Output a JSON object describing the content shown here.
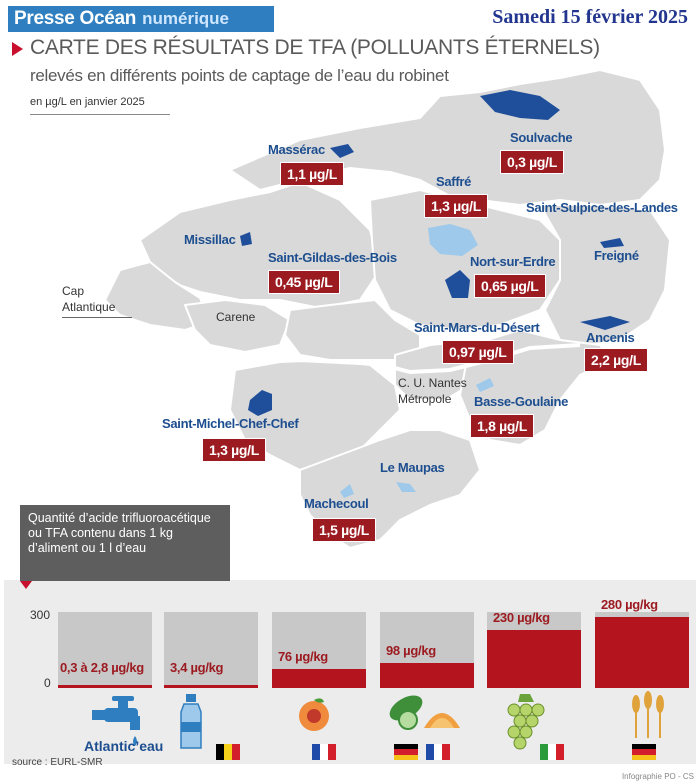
{
  "header": {
    "brand_main": "Presse Océan",
    "brand_sub": "numérique",
    "date": "Samedi 15 février 2025"
  },
  "title": "CARTE DES RÉSULTATS DE TFA (POLLUANTS ÉTERNELS)",
  "subtitle": "relevés en différents points de captage de l’eau du robinet",
  "unit_note": "en µg/L  en janvier 2025",
  "map": {
    "sites": [
      {
        "name": "Massérac",
        "value": "1,1 µg/L"
      },
      {
        "name": "Soulvache",
        "value": "0,3 µg/L"
      },
      {
        "name": "Saffré",
        "value": "1,3 µg/L"
      },
      {
        "name": "Saint-Sulpice-des-Landes",
        "value": ""
      },
      {
        "name": "Missillac",
        "value": ""
      },
      {
        "name": "Saint-Gildas-des-Bois",
        "value": "0,45 µg/L"
      },
      {
        "name": "Nort-sur-Erdre",
        "value": "0,65 µg/L"
      },
      {
        "name": "Freigné",
        "value": ""
      },
      {
        "name": "Saint-Mars-du-Désert",
        "value": "0,97 µg/L"
      },
      {
        "name": "Ancenis",
        "value": "2,2 µg/L"
      },
      {
        "name": "Basse-Goulaine",
        "value": "1,8 µg/L"
      },
      {
        "name": "Saint-Michel-Chef-Chef",
        "value": "1,3 µg/L"
      },
      {
        "name": "Le Maupas",
        "value": ""
      },
      {
        "name": "Machecoul",
        "value": "1,5 µg/L"
      }
    ],
    "areas": {
      "cap_line1": "Cap",
      "cap_line2": "Atlantique",
      "carene": "Carene",
      "nantes_line1": "C. U. Nantes",
      "nantes_line2": "Métropole"
    },
    "colors": {
      "land": "#d9d9d9",
      "water": "#1f4e9a",
      "lake": "#9ec9ea",
      "value_box": "#9c1b21"
    }
  },
  "tfa_box": "Quantité d’acide trifluoroacétique ou TFA contenu dans 1 kg d’aliment ou 1 l d’eau",
  "bar_panel": {
    "y_max_label": "300",
    "y_min_label": "0",
    "bars": [
      {
        "label": "0,3 à 2,8 µg/kg",
        "value": 2.8,
        "icon": "water-tap-icon",
        "caption": "Atlantic’eau",
        "flags": []
      },
      {
        "label": "3,4 µg/kg",
        "value": 3.4,
        "icon": "water-bottle-icon",
        "caption": "",
        "flags": [
          "belgium"
        ]
      },
      {
        "label": "76 µg/kg",
        "value": 76,
        "icon": "peach-icon",
        "caption": "",
        "flags": [
          "france"
        ]
      },
      {
        "label": "98 µg/kg",
        "value": 98,
        "icon": "cucumber-melon-icon",
        "caption": "",
        "flags": [
          "germany",
          "france"
        ]
      },
      {
        "label": "230 µg/kg",
        "value": 230,
        "icon": "grapes-icon",
        "caption": "",
        "flags": [
          "italy"
        ]
      },
      {
        "label": "280 µg/kg",
        "value": 280,
        "icon": "wheat-icon",
        "caption": "",
        "flags": [
          "germany"
        ]
      }
    ],
    "bar_color": "#b3141d"
  },
  "source": "source : EURL-SMR",
  "credit": "Infographie PO - CS"
}
